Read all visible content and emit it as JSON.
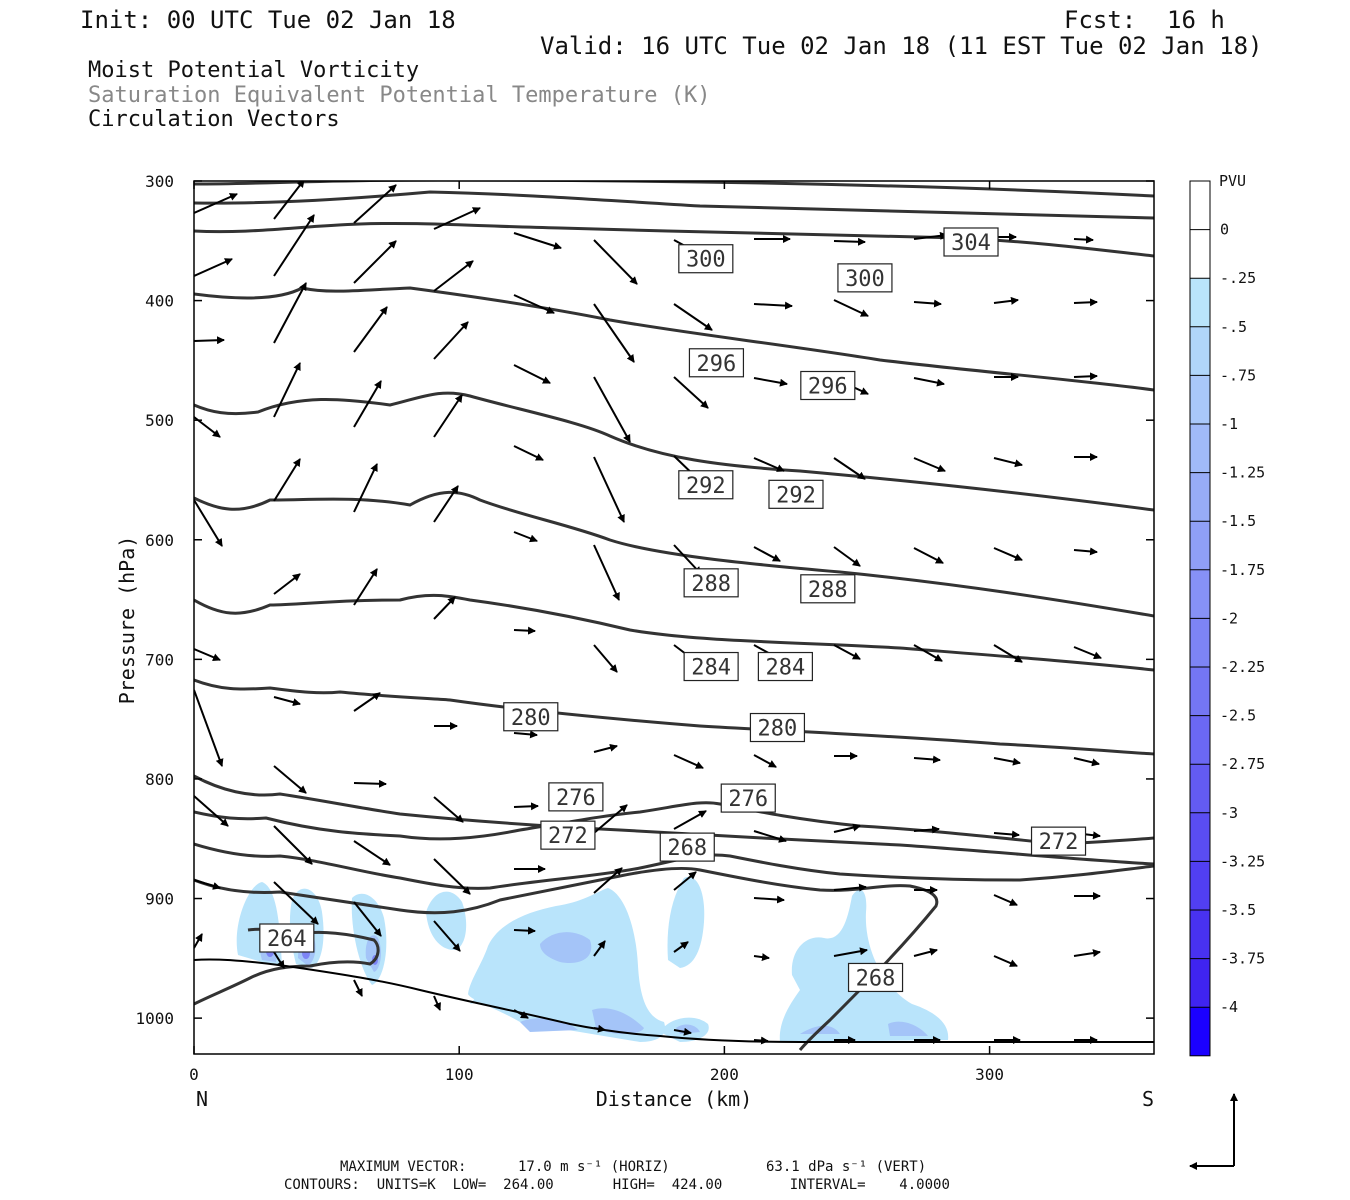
{
  "header": {
    "init": "Init: 00 UTC Tue 02 Jan 18",
    "fcst_label": "Fcst:",
    "fcst_value": "16 h",
    "valid": "Valid: 16 UTC Tue 02 Jan 18 (11 EST Tue 02 Jan 18)"
  },
  "titles": {
    "field1": "Moist Potential Vorticity",
    "field2": "Saturation Equivalent Potential Temperature (K)",
    "field3": "Circulation Vectors"
  },
  "footer": {
    "max_vector_label": "MAXIMUM VECTOR:",
    "max_vector_horiz": "17.0 m s⁻¹ (HORIZ)",
    "max_vector_vert": "63.1 dPa s⁻¹ (VERT)",
    "contours": "CONTOURS:  UNITS=K  LOW=  264.00       HIGH=  424.00        INTERVAL=    4.0000"
  },
  "chart_data": {
    "type": "cross-section",
    "xlabel": "Distance (km)",
    "ylabel": "Pressure (hPa)",
    "xlim": [
      0,
      362
    ],
    "ylim": [
      1030,
      300
    ],
    "x_ticks": [
      0,
      100,
      200,
      300
    ],
    "y_ticks": [
      300,
      400,
      500,
      600,
      700,
      800,
      900,
      1000
    ],
    "x_end_labels": {
      "left": "N",
      "right": "S"
    },
    "colorbar": {
      "unit": "PVU",
      "labels": [
        "0",
        "-.25",
        "-.5",
        "-.75",
        "-1",
        "-1.25",
        "-1.5",
        "-1.75",
        "-2",
        "-2.25",
        "-2.5",
        "-2.75",
        "-3",
        "-3.25",
        "-3.5",
        "-3.75",
        "-4"
      ],
      "colors": [
        "#ffffff",
        "#ffffff",
        "#b9e4fb",
        "#b0d6fa",
        "#a9c8f9",
        "#a0baf8",
        "#97acf7",
        "#8f9ff6",
        "#8691f6",
        "#7d84f5",
        "#7476f4",
        "#6b68f4",
        "#635bf3",
        "#5a4df2",
        "#513ff2",
        "#4832f1",
        "#3f24f0",
        "#1b00ff"
      ]
    },
    "contour_labels": [
      {
        "x": 35,
        "p": 933,
        "text": "264"
      },
      {
        "x": 186,
        "p": 857,
        "text": "268"
      },
      {
        "x": 257,
        "p": 966,
        "text": "268"
      },
      {
        "x": 141,
        "p": 847,
        "text": "272"
      },
      {
        "x": 326,
        "p": 852,
        "text": "272"
      },
      {
        "x": 144,
        "p": 815,
        "text": "276"
      },
      {
        "x": 209,
        "p": 816,
        "text": "276"
      },
      {
        "x": 127,
        "p": 748,
        "text": "280"
      },
      {
        "x": 220,
        "p": 757,
        "text": "280"
      },
      {
        "x": 195,
        "p": 706,
        "text": "284"
      },
      {
        "x": 223,
        "p": 706,
        "text": "284"
      },
      {
        "x": 195,
        "p": 636,
        "text": "288"
      },
      {
        "x": 239,
        "p": 641,
        "text": "288"
      },
      {
        "x": 193,
        "p": 554,
        "text": "292"
      },
      {
        "x": 227,
        "p": 562,
        "text": "292"
      },
      {
        "x": 197,
        "p": 452,
        "text": "296"
      },
      {
        "x": 239,
        "p": 471,
        "text": "296"
      },
      {
        "x": 193,
        "p": 365,
        "text": "300"
      },
      {
        "x": 253,
        "p": 381,
        "text": "300"
      },
      {
        "x": 293,
        "p": 351,
        "text": "304"
      }
    ]
  }
}
